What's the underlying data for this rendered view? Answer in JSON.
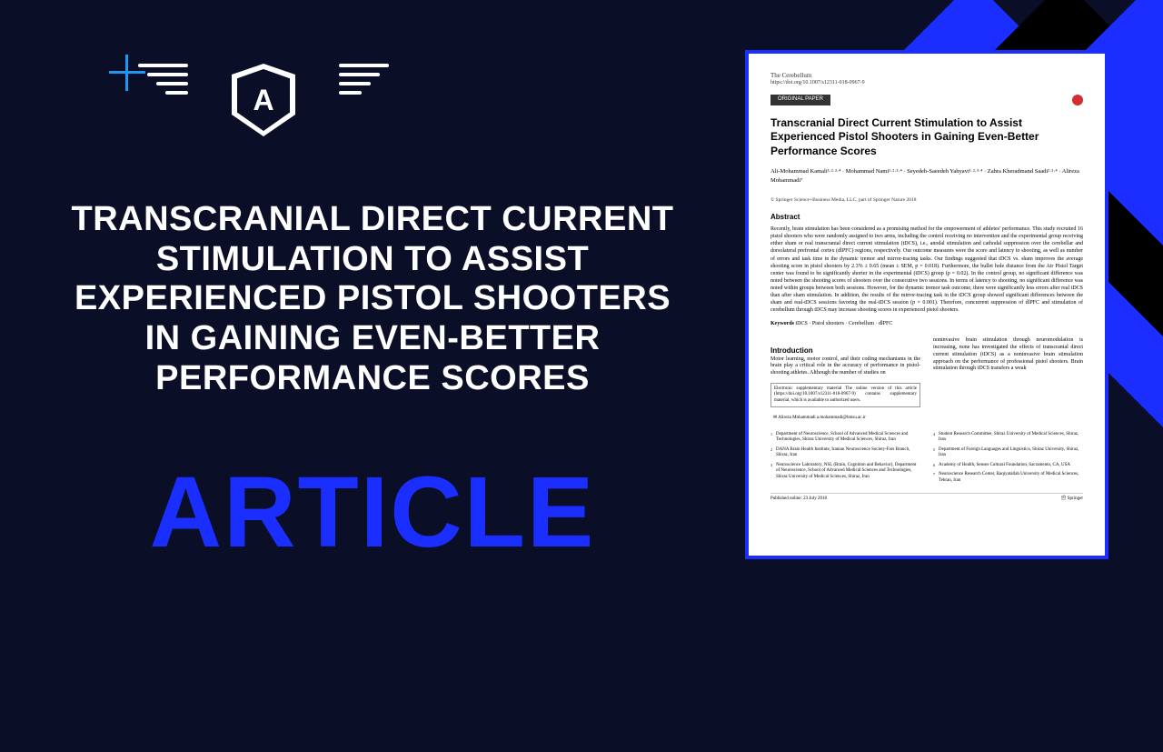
{
  "colors": {
    "background": "#0a0e27",
    "accent_blue": "#1a2fff",
    "light_blue": "#2196f3",
    "white": "#ffffff",
    "black": "#000000"
  },
  "logo": {
    "letter": "A"
  },
  "headline": "TRANSCRANIAL DIRECT CURRENT STIMULATION TO ASSIST EXPERIENCED PISTOL SHOOTERS IN GAINING EVEN-BETTER PERFORMANCE SCORES",
  "label": "ARTICLE",
  "paper": {
    "journal": "The Cerebellum",
    "doi": "https://doi.org/10.1007/s12311-018-0967-9",
    "tag": "ORIGINAL PAPER",
    "checkmark_label": "CrossMark",
    "title": "Transcranial Direct Current Stimulation to Assist Experienced Pistol Shooters in Gaining Even-Better Performance Scores",
    "authors": "Ali-Mohammad Kamali¹·²·³·⁴ · Mohammad Nami¹·²·³·⁴ · Seyedeh-Saeedeh Yahyavi¹·²·³·⁴ · Zahra Kheradmand Saadi²·³·⁴ · Alireza Mohammadi⁷",
    "copyright": "© Springer Science+Business Media, LLC, part of Springer Nature 2018",
    "abstract_title": "Abstract",
    "abstract_text": "Recently, brain stimulation has been considered as a promising method for the empowerment of athletes' performance. This study recruited 16 pistol shooters who were randomly assigned to two arms, including the control receiving no intervention and the experimental group receiving either sham or real transcranial direct current stimulation (tDCS), i.e., anodal stimulation and cathodal suppression over the cerebellar and dorsolateral prefrontal cortex (dlPFC) regions, respectively. Our outcome measures were the score and latency to shooting, as well as number of errors and task time in the dynamic tremor and mirror-tracing tasks. Our findings suggested that tDCS vs. sham improves the average shooting score in pistol shooters by 2.3% ± 0.65 (mean ± SEM, p = 0.018). Furthermore, the bullet hole distance from the Air Pistol Target center was found to be significantly shorter in the experimental (tDCS) group (p = 0.02). In the control group, no significant difference was noted between the shooting scores of shooters over the consecutive two sessions. In terms of latency to shooting, no significant difference was noted within groups between both sessions. However, for the dynamic tremor task outcome, there were significantly less errors after real tDCS than after sham stimulation. In addition, the results of the mirror-tracing task in the tDCS group showed significant differences between the sham and real-tDCS sessions favoring the real-tDCS session (p = 0.001). Therefore, concurrent suppression of dlPFC and stimulation of cerebellum through tDCS may increase shooting scores in experienced pistol shooters.",
    "keywords_label": "Keywords",
    "keywords_text": "tDCS · Pistol shooters · Cerebellum · dlPFC",
    "intro_title": "Introduction",
    "intro_left": "Motor learning, motor control, and their coding mechanisms in the brain play a critical role in the accuracy of performance in pistol-shooting athletes. Although the number of studies on",
    "intro_right": "noninvasive brain stimulation through neuromodulation is increasing, none has investigated the effects of transcranial direct current stimulation (tDCS) as a noninvasive brain stimulation approach on the performance of professional pistol shooters. Brain stimulation through tDCS transfers a weak",
    "supp_box": "Electronic supplementary material The online version of this article (https://doi.org/10.1007/s12311-018-0967-9) contains supplementary material, which is available to authorized users.",
    "corresponding": "✉ Alireza Mohammadi\na.mohammadi@bmsu.ac.ir",
    "affiliations": [
      {
        "n": "1",
        "text": "Department of Neuroscience, School of Advanced Medical Sciences and Technologies, Shiraz University of Medical Sciences, Shiraz, Iran"
      },
      {
        "n": "2",
        "text": "DANA Brain Health Institute, Iranian Neuroscience Society-Fars Branch, Shiraz, Iran"
      },
      {
        "n": "3",
        "text": "Neuroscience Laboratory, NSL (Brain, Cognition and Behavior), Department of Neuroscience, School of Advanced Medical Sciences and Technologies, Shiraz University of Medical Sciences, Shiraz, Iran"
      },
      {
        "n": "4",
        "text": "Student Research Committee, Shiraz University of Medical Sciences, Shiraz, Iran"
      },
      {
        "n": "5",
        "text": "Department of Foreign Languages and Linguistics, Shiraz University, Shiraz, Iran"
      },
      {
        "n": "6",
        "text": "Academy of Health, Senses Cultural Foundation, Sacramento, CA, USA"
      },
      {
        "n": "7",
        "text": "Neuroscience Research Center, Baqiyatallah University of Medical Sciences, Tehran, Iran"
      }
    ],
    "published": "Published online: 23 July 2018",
    "publisher": "🖄 Springer"
  }
}
